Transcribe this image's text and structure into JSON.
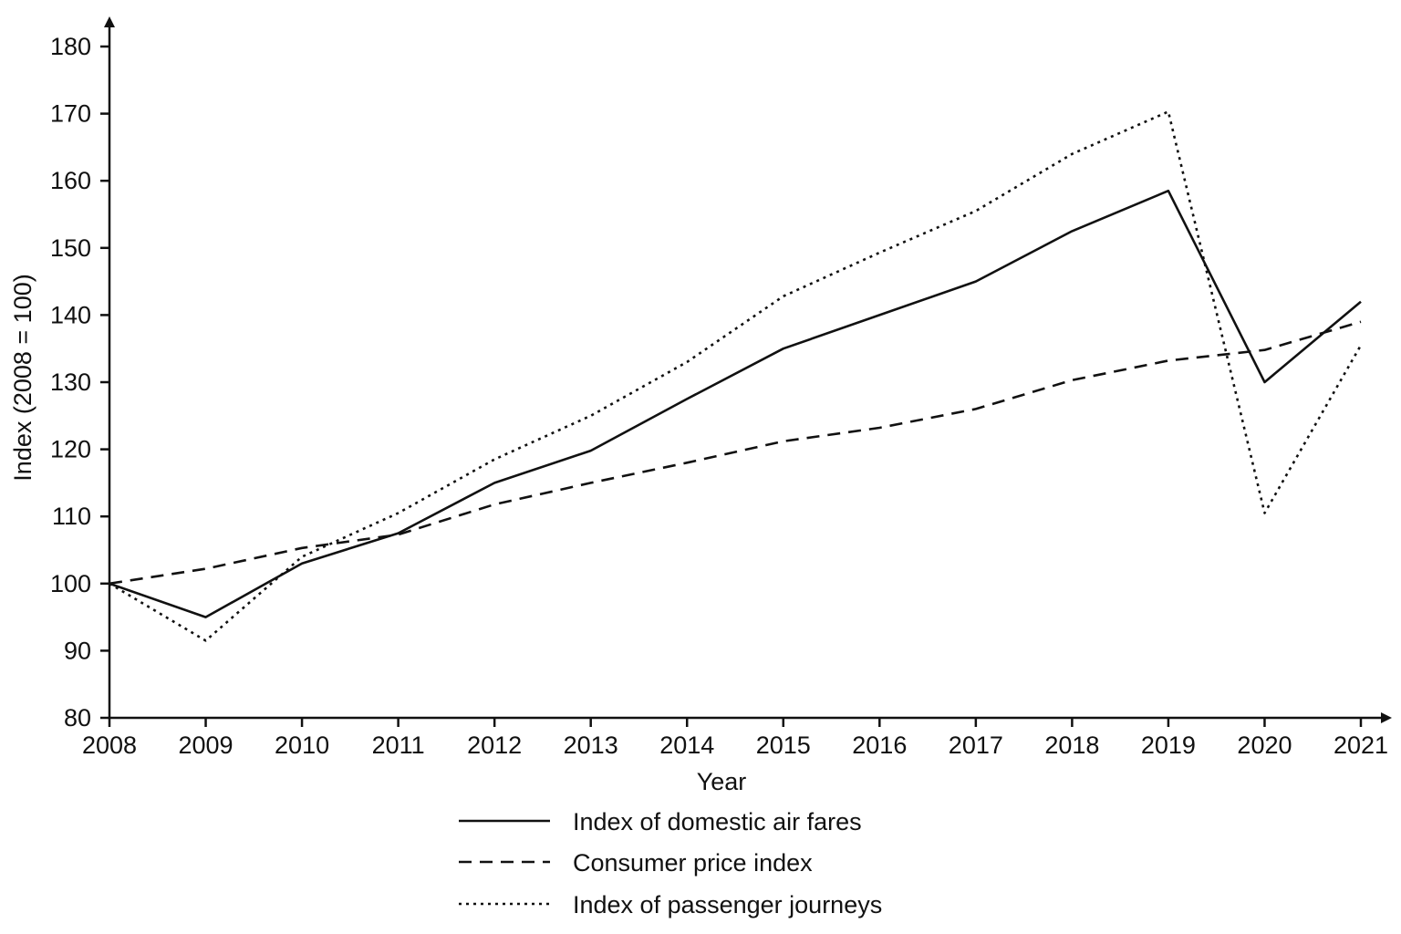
{
  "chart_data": {
    "type": "line",
    "title": "",
    "xlabel": "Year",
    "ylabel": "Index (2008 = 100)",
    "ylim": [
      80,
      180
    ],
    "yticks": [
      80,
      90,
      100,
      110,
      120,
      130,
      140,
      150,
      160,
      170,
      180
    ],
    "categories": [
      "2008",
      "2009",
      "2010",
      "2011",
      "2012",
      "2013",
      "2014",
      "2015",
      "2016",
      "2017",
      "2018",
      "2019",
      "2020",
      "2021"
    ],
    "grid": false,
    "legend_position": "bottom-center",
    "series": [
      {
        "name": "Index of domestic air fares",
        "style": "solid",
        "values": [
          100,
          95,
          103,
          107.5,
          115,
          119.8,
          127.5,
          135,
          140,
          145,
          152.5,
          158.5,
          130,
          142
        ]
      },
      {
        "name": "Consumer price index",
        "style": "dashed",
        "values": [
          100,
          102.2,
          105.3,
          107.3,
          111.8,
          115,
          118,
          121.2,
          123.2,
          126,
          130.3,
          133.2,
          134.8,
          139
        ]
      },
      {
        "name": "Index of passenger journeys",
        "style": "dotted",
        "values": [
          100,
          91.5,
          104,
          110.5,
          118.5,
          125,
          133,
          142.8,
          149.3,
          155.5,
          164,
          170.3,
          110.5,
          135.5
        ]
      }
    ]
  }
}
